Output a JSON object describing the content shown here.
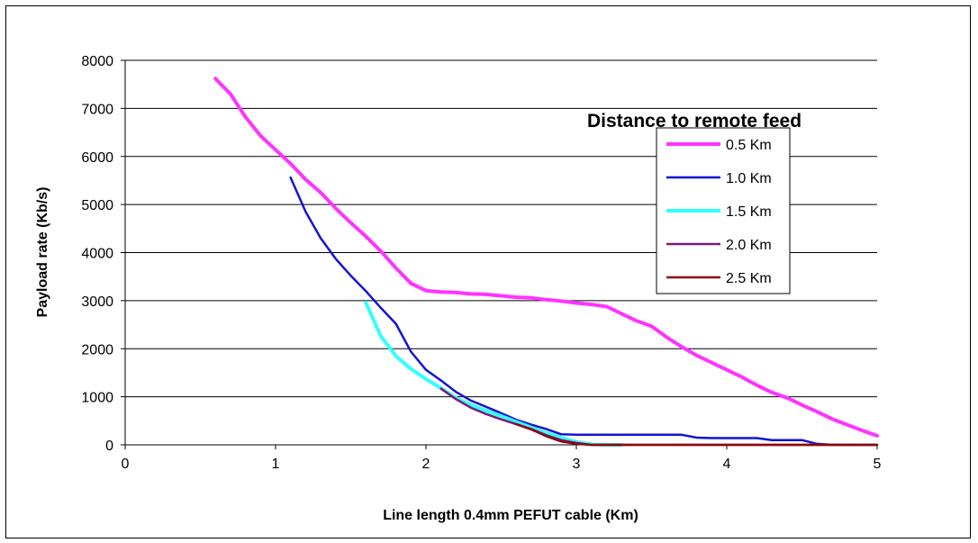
{
  "chart_data": {
    "type": "line",
    "title": "",
    "xlabel": "Line length 0.4mm PEFUT cable (Km)",
    "ylabel": "Payload rate (Kb/s)",
    "xlim": [
      0,
      5
    ],
    "ylim": [
      0,
      8000
    ],
    "x_ticks": [
      "0",
      "1",
      "2",
      "3",
      "4",
      "5"
    ],
    "y_ticks": [
      "0",
      "1000",
      "2000",
      "3000",
      "4000",
      "5000",
      "6000",
      "7000",
      "8000"
    ],
    "grid": "horizontal",
    "legend_title": "Distance to remote feed",
    "legend_position": "top-right",
    "series": [
      {
        "name": "0.5 Km",
        "color": "#ff33ff",
        "x": [
          0.6,
          0.7,
          0.8,
          0.9,
          1.0,
          1.1,
          1.2,
          1.3,
          1.4,
          1.5,
          1.6,
          1.7,
          1.8,
          1.9,
          2.0,
          2.1,
          2.2,
          2.3,
          2.4,
          2.5,
          2.6,
          2.7,
          2.8,
          2.9,
          3.0,
          3.1,
          3.2,
          3.3,
          3.4,
          3.5,
          3.6,
          3.7,
          3.8,
          3.9,
          4.0,
          4.1,
          4.2,
          4.3,
          4.4,
          4.5,
          4.6,
          4.7,
          4.8,
          4.9,
          5.0
        ],
        "y": [
          7620,
          7300,
          6820,
          6430,
          6140,
          5850,
          5520,
          5250,
          4920,
          4620,
          4340,
          4030,
          3680,
          3360,
          3210,
          3180,
          3170,
          3140,
          3130,
          3100,
          3070,
          3060,
          3020,
          2990,
          2950,
          2920,
          2880,
          2730,
          2580,
          2470,
          2240,
          2040,
          1860,
          1710,
          1560,
          1410,
          1240,
          1090,
          980,
          830,
          690,
          540,
          420,
          300,
          190
        ]
      },
      {
        "name": "1.0 Km",
        "color": "#1414d2",
        "x": [
          1.1,
          1.2,
          1.3,
          1.4,
          1.5,
          1.6,
          1.7,
          1.8,
          1.9,
          2.0,
          2.1,
          2.2,
          2.3,
          2.4,
          2.5,
          2.6,
          2.7,
          2.8,
          2.9,
          3.0,
          3.1,
          3.2,
          3.3,
          3.4,
          3.5,
          3.6,
          3.7,
          3.8,
          3.9,
          4.0,
          4.1,
          4.2,
          4.3,
          4.4,
          4.5,
          4.6,
          4.7,
          4.8,
          4.9,
          5.0
        ],
        "y": [
          5560,
          4850,
          4300,
          3870,
          3520,
          3200,
          2850,
          2520,
          1940,
          1560,
          1340,
          1100,
          920,
          790,
          660,
          520,
          420,
          330,
          220,
          210,
          210,
          210,
          210,
          210,
          210,
          210,
          210,
          150,
          140,
          140,
          140,
          140,
          100,
          100,
          100,
          20,
          0,
          0,
          0,
          0
        ]
      },
      {
        "name": "1.5 Km",
        "color": "#33ffff",
        "x": [
          1.6,
          1.7,
          1.8,
          1.9,
          2.0,
          2.1,
          2.2,
          2.3,
          2.4,
          2.5,
          2.6,
          2.7,
          2.8,
          2.9,
          3.0,
          3.1,
          3.2,
          3.3
        ],
        "y": [
          2960,
          2260,
          1850,
          1580,
          1370,
          1180,
          970,
          830,
          710,
          600,
          480,
          360,
          250,
          150,
          60,
          10,
          0,
          0
        ]
      },
      {
        "name": "2.0 Km",
        "color": "#7a1a7a",
        "x": [
          2.1,
          2.2,
          2.3,
          2.4,
          2.5,
          2.6,
          2.7,
          2.8,
          2.9,
          3.0,
          3.1,
          3.2,
          3.3,
          3.4,
          3.5,
          3.6,
          3.7,
          3.8,
          3.9,
          4.0,
          4.1,
          4.2,
          4.3,
          4.4,
          4.5,
          4.6,
          4.7,
          4.8,
          4.9,
          5.0
        ],
        "y": [
          1170,
          950,
          770,
          640,
          530,
          430,
          330,
          200,
          100,
          40,
          0,
          0,
          0,
          0,
          0,
          0,
          0,
          0,
          0,
          0,
          0,
          0,
          0,
          0,
          0,
          0,
          0,
          0,
          0,
          0
        ]
      },
      {
        "name": "2.5 Km",
        "color": "#8b0a0a",
        "x": [
          2.6,
          2.7,
          2.8,
          2.9,
          3.0,
          3.1,
          3.2,
          3.3,
          3.4,
          3.5,
          3.6,
          3.7,
          3.8,
          3.9,
          4.0,
          4.1,
          4.2,
          4.3,
          4.4,
          4.5,
          4.6,
          4.7,
          4.8,
          4.9,
          5.0
        ],
        "y": [
          430,
          320,
          180,
          70,
          20,
          0,
          0,
          0,
          0,
          0,
          0,
          0,
          0,
          0,
          0,
          0,
          0,
          0,
          0,
          0,
          0,
          0,
          0,
          0,
          0
        ]
      }
    ]
  }
}
